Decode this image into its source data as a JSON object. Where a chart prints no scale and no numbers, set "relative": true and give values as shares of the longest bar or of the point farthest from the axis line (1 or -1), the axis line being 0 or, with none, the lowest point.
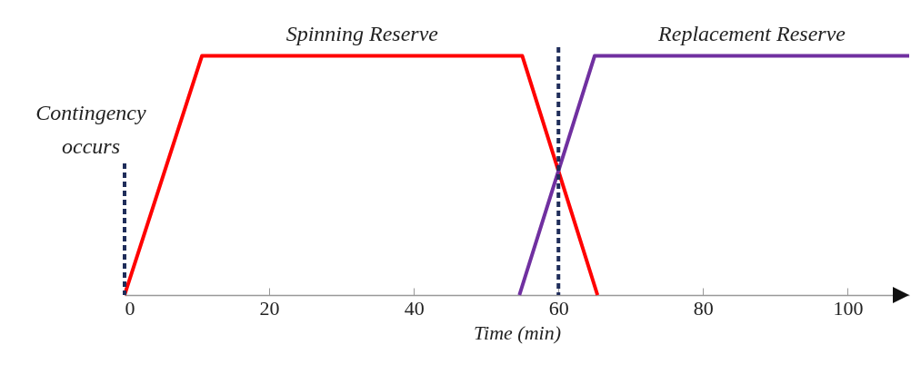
{
  "chart_data": {
    "type": "line",
    "relative": true,
    "xlabel": "Time (min)",
    "xlim": [
      0,
      108.5
    ],
    "xticks": [
      0,
      20,
      40,
      60,
      80,
      100
    ],
    "grid": false,
    "marker": "none",
    "line_style": "solid",
    "series": [
      {
        "name": "Spinning Reserve",
        "color": "#ff0000",
        "x": [
          0,
          10.7,
          55,
          65.4
        ],
        "values": [
          0,
          1,
          1,
          0
        ]
      },
      {
        "name": "Replacement Reserve",
        "color": "#7030a0",
        "x": [
          54.6,
          65,
          108.5
        ],
        "values": [
          0,
          1,
          1
        ]
      }
    ],
    "ref_lines": [
      {
        "axis": "x",
        "value": 0,
        "color": "#1f2d5a",
        "line_style": "dashed"
      },
      {
        "axis": "x",
        "value": 60,
        "color": "#1f2d5a",
        "line_style": "dashed"
      }
    ],
    "annotations": [
      "Contingency occurs"
    ]
  }
}
